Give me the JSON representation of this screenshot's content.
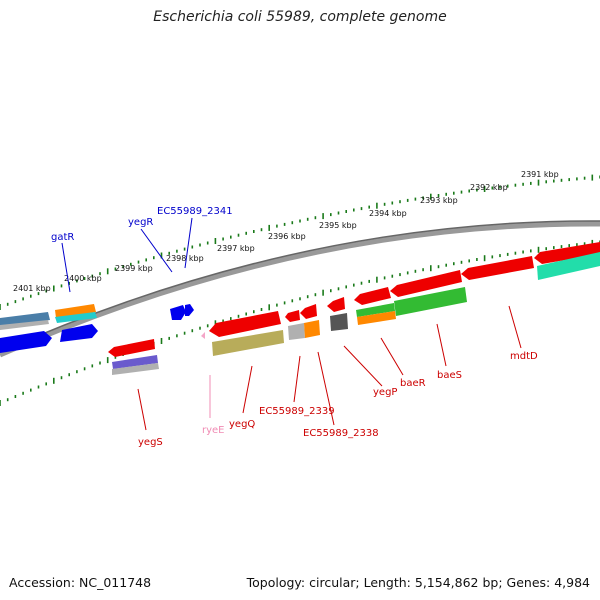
{
  "title": "Escherichia coli 55989, complete genome",
  "footer": {
    "accession": "Accession: NC_011748",
    "summary": "Topology: circular; Length: 5,154,862 bp; Genes: 4,984"
  },
  "ruler_labels": [
    "2401 kbp",
    "2400 kbp",
    "2399 kbp",
    "2398 kbp",
    "2397 kbp",
    "2396 kbp",
    "2395 kbp",
    "2394 kbp",
    "2393 kbp",
    "2392 kbp",
    "2391 kbp"
  ],
  "gene_labels": {
    "gatR": "gatR",
    "yegR": "yegR",
    "ec2341": "EC55989_2341",
    "yegS": "yegS",
    "ryeE": "ryeE",
    "yegQ": "yegQ",
    "ec2339": "EC55989_2339",
    "ec2338": "EC55989_2338",
    "yegP": "yegP",
    "baeR": "baeR",
    "baeS": "baeS",
    "mdtD": "mdtD"
  },
  "colors": {
    "ruler_tick": "#1a7a1a",
    "backbone": "#888888",
    "forward_label": "#0000cc",
    "reverse_label": "#cc0000",
    "rna_label": "#f08cb4",
    "gene_red": "#ee0000",
    "gene_blue": "#0000ee",
    "gene_green": "#33bb33",
    "gene_orange": "#ff8800",
    "gene_cyan": "#22cccc",
    "gene_teal": "#22ddaa",
    "gene_olive": "#b8ac5a",
    "gene_slate": "#4a7ea8",
    "gene_purple": "#6a5acd",
    "gene_grey": "#b0b0b0",
    "gene_dark": "#555555",
    "gene_pink": "#f4a6c8"
  }
}
